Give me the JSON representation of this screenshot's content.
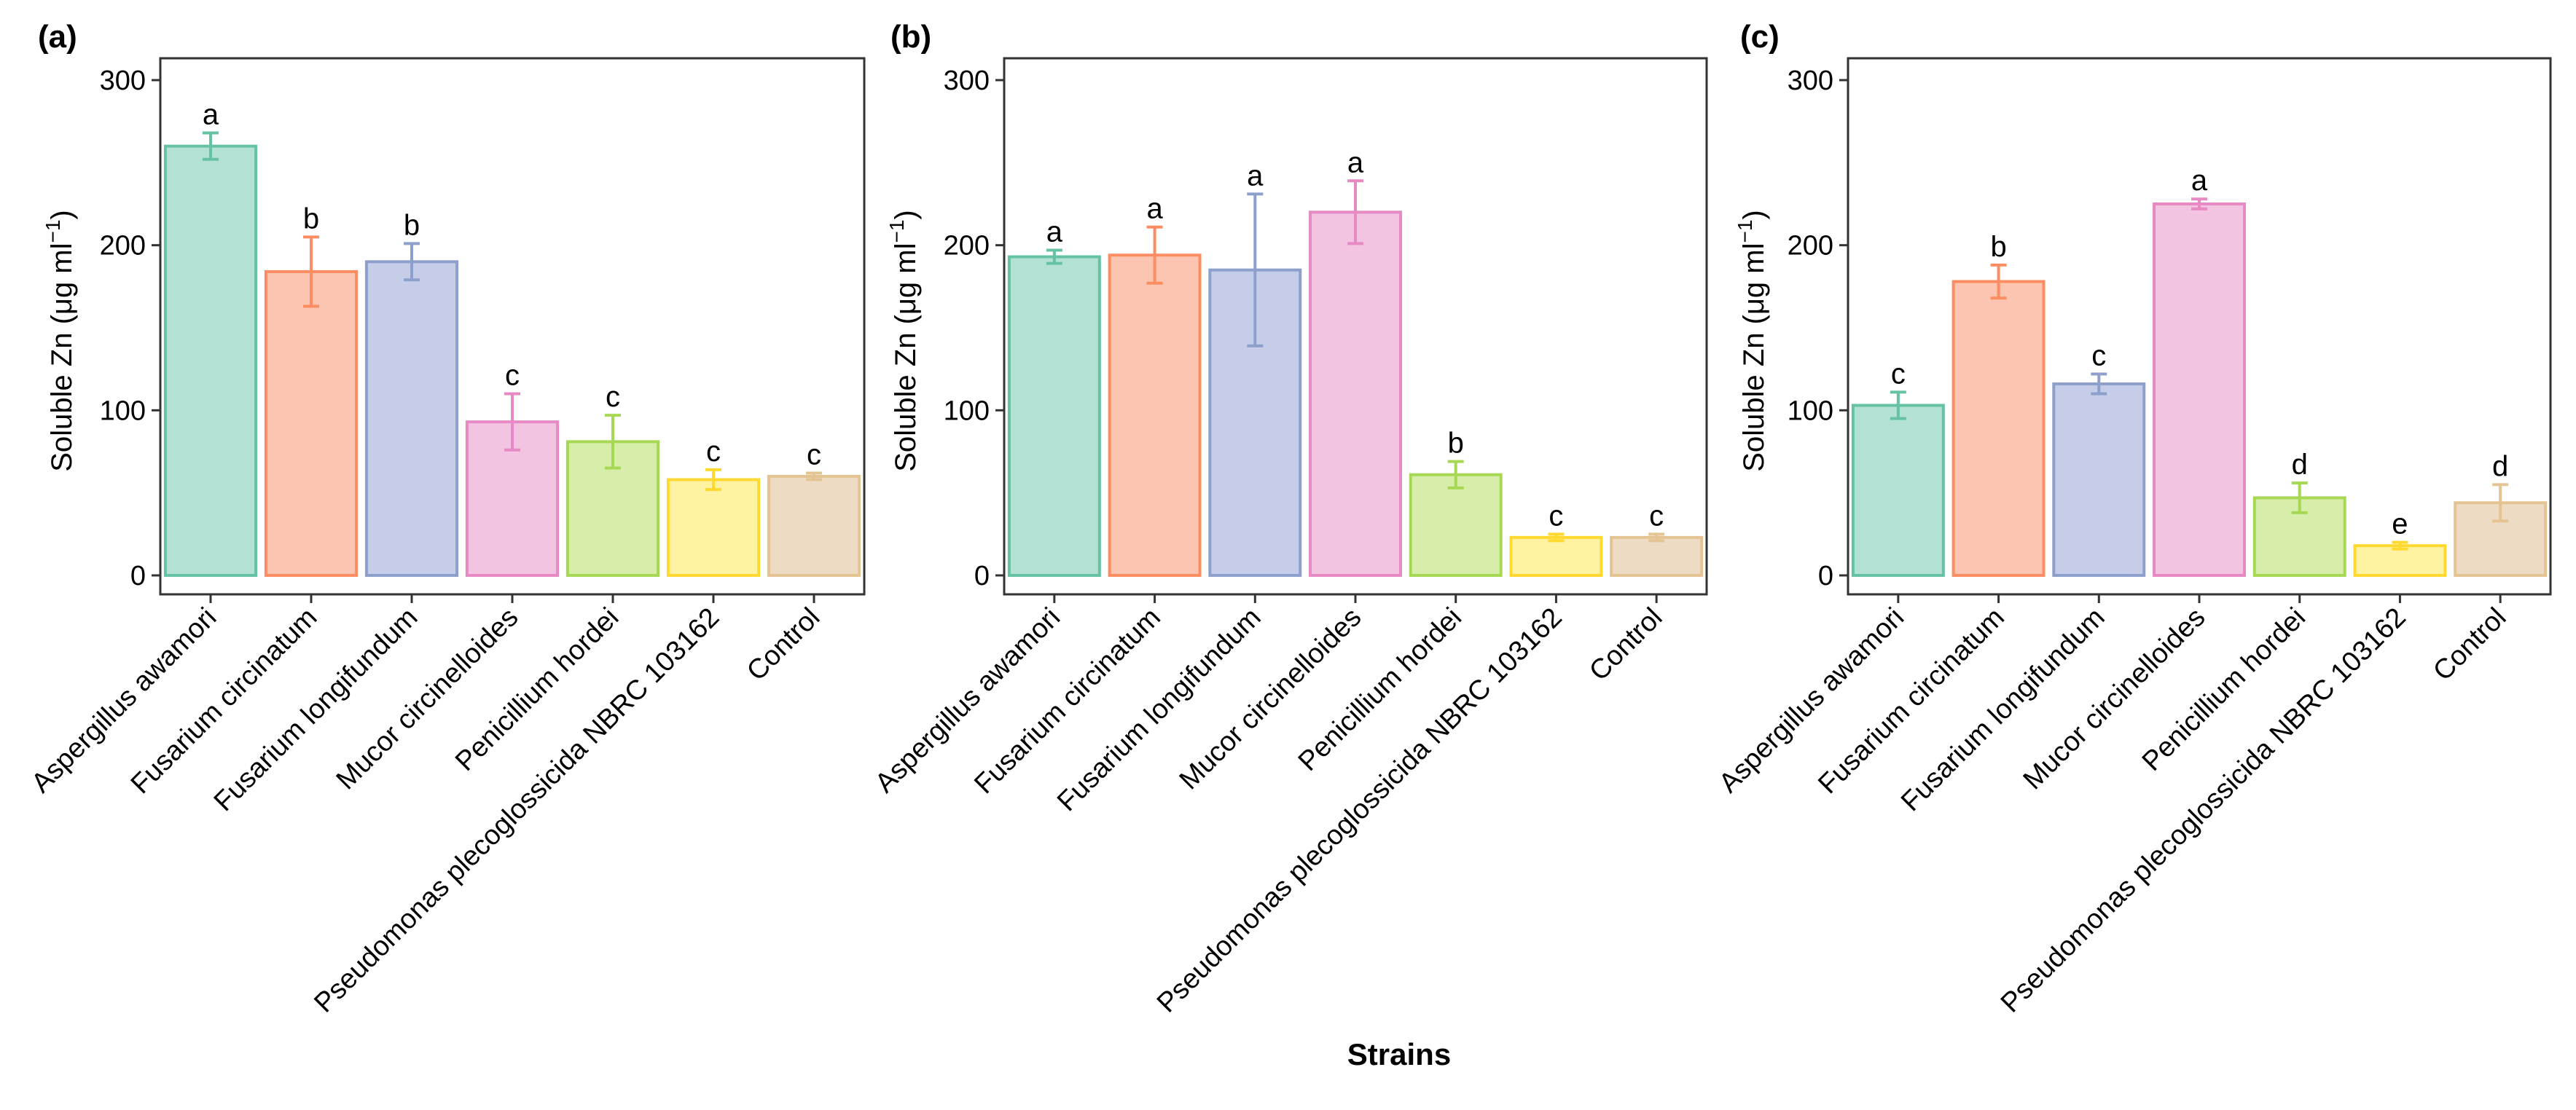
{
  "figure": {
    "xlabel": "Strains"
  },
  "chart_data": [
    {
      "type": "bar",
      "panel": "(a)",
      "ylabel_main": "Soluble Zn (μg ml",
      "ylabel_sup": "−1",
      "ylabel_close": ")",
      "ylim": [
        0,
        300
      ],
      "yticks": [
        0,
        100,
        200,
        300
      ],
      "categories": [
        "Aspergillus awamori",
        "Fusarium circinatum",
        "Fusarium longifundum",
        "Mucor circinelloides",
        "Penicillium hordei",
        "Pseudomonas plecoglossicida NBRC 103162",
        "Control"
      ],
      "values": [
        260,
        184,
        190,
        93,
        81,
        58,
        60
      ],
      "errors": [
        8,
        21,
        11,
        17,
        16,
        6,
        2
      ],
      "significance": [
        "a",
        "b",
        "b",
        "c",
        "c",
        "c",
        "c"
      ]
    },
    {
      "type": "bar",
      "panel": "(b)",
      "ylabel_main": "Soluble Zn (μg ml",
      "ylabel_sup": "−1",
      "ylabel_close": ")",
      "ylim": [
        0,
        300
      ],
      "yticks": [
        0,
        100,
        200,
        300
      ],
      "categories": [
        "Aspergillus awamori",
        "Fusarium circinatum",
        "Fusarium longifundum",
        "Mucor circinelloides",
        "Penicillium hordei",
        "Pseudomonas plecoglossicida NBRC 103162",
        "Control"
      ],
      "values": [
        193,
        194,
        185,
        220,
        61,
        23,
        23
      ],
      "errors": [
        4,
        17,
        46,
        19,
        8,
        2,
        2
      ],
      "significance": [
        "a",
        "a",
        "a",
        "a",
        "b",
        "c",
        "c"
      ]
    },
    {
      "type": "bar",
      "panel": "(c)",
      "ylabel_main": "Soluble Zn (μg ml",
      "ylabel_sup": "−1",
      "ylabel_close": ")",
      "ylim": [
        0,
        300
      ],
      "yticks": [
        0,
        100,
        200,
        300
      ],
      "categories": [
        "Aspergillus awamori",
        "Fusarium circinatum",
        "Fusarium longifundum",
        "Mucor circinelloides",
        "Penicillium hordei",
        "Pseudomonas plecoglossicida NBRC 103162",
        "Control"
      ],
      "values": [
        103,
        178,
        116,
        225,
        47,
        18,
        44
      ],
      "errors": [
        8,
        10,
        6,
        3,
        9,
        2,
        11
      ],
      "significance": [
        "c",
        "b",
        "c",
        "a",
        "d",
        "e",
        "d"
      ]
    }
  ],
  "colors": {
    "fills": [
      "#b3e2d5",
      "#fcc5b1",
      "#c6cde8",
      "#f2c4e2",
      "#d7eeaa",
      "#fff2a3",
      "#eddcc3"
    ],
    "strokes": [
      "#66c2a5",
      "#fc8d62",
      "#8da0cb",
      "#e78ac3",
      "#a6d854",
      "#ffd92f",
      "#e5c494"
    ]
  }
}
